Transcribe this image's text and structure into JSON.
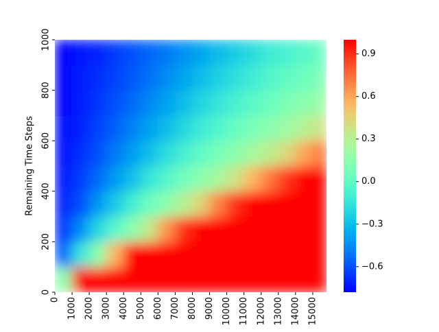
{
  "chart_data": {
    "type": "heatmap",
    "ylabel": "Remaining Time Steps",
    "colormap": "rainbow",
    "xbins": [
      0,
      1000,
      2000,
      3000,
      4000,
      5000,
      6000,
      7000,
      8000,
      9000,
      10000,
      11000,
      12000,
      13000,
      14000,
      15000,
      15800
    ],
    "ybins": [
      0,
      100,
      200,
      300,
      400,
      500,
      600,
      700,
      800,
      900,
      1000
    ],
    "values": [
      [
        0.15,
        1,
        1,
        1,
        1,
        1,
        1,
        1,
        1,
        1,
        1,
        1,
        1,
        1,
        1,
        1
      ],
      [
        -0.55,
        -0.15,
        0.15,
        0.55,
        1,
        1,
        1,
        1,
        1,
        1,
        1,
        1,
        1,
        1,
        1,
        1
      ],
      [
        -0.67,
        -0.45,
        -0.22,
        -0.02,
        0.15,
        0.35,
        0.65,
        0.9,
        1,
        1,
        1,
        1,
        1,
        1,
        1,
        1
      ],
      [
        -0.7,
        -0.6,
        -0.42,
        -0.27,
        -0.1,
        0.05,
        0.15,
        0.3,
        0.45,
        0.7,
        0.9,
        1,
        1,
        1,
        1,
        1
      ],
      [
        -0.73,
        -0.64,
        -0.54,
        -0.41,
        -0.3,
        -0.15,
        -0.04,
        0.07,
        0.15,
        0.25,
        0.38,
        0.55,
        0.72,
        0.88,
        1,
        1
      ],
      [
        -0.75,
        -0.68,
        -0.6,
        -0.5,
        -0.4,
        -0.3,
        -0.19,
        -0.09,
        0.0,
        0.08,
        0.15,
        0.24,
        0.33,
        0.43,
        0.6,
        0.72
      ],
      [
        -0.76,
        -0.7,
        -0.63,
        -0.56,
        -0.48,
        -0.39,
        -0.31,
        -0.21,
        -0.12,
        -0.05,
        0.02,
        0.09,
        0.15,
        0.21,
        0.3,
        0.38
      ],
      [
        -0.77,
        -0.71,
        -0.66,
        -0.6,
        -0.54,
        -0.46,
        -0.39,
        -0.31,
        -0.22,
        -0.15,
        -0.08,
        -0.02,
        0.04,
        0.1,
        0.15,
        0.2
      ],
      [
        -0.77,
        -0.72,
        -0.68,
        -0.63,
        -0.58,
        -0.52,
        -0.45,
        -0.38,
        -0.31,
        -0.24,
        -0.17,
        -0.11,
        -0.05,
        0.0,
        0.05,
        0.1
      ],
      [
        -0.77,
        -0.73,
        -0.7,
        -0.65,
        -0.6,
        -0.55,
        -0.5,
        -0.44,
        -0.38,
        -0.31,
        -0.25,
        -0.19,
        -0.12,
        -0.08,
        -0.03,
        0.02
      ]
    ],
    "xlim": [
      0,
      15800
    ],
    "xticks": [
      0,
      1000,
      2000,
      3000,
      4000,
      5000,
      6000,
      7000,
      8000,
      9000,
      10000,
      11000,
      12000,
      13000,
      14000,
      15000
    ],
    "ylim": [
      0,
      1000
    ],
    "yticks": [
      0,
      200,
      400,
      600,
      800,
      1000
    ],
    "zlim": [
      -0.78,
      1.0
    ],
    "zticks": [
      {
        "value": -0.6,
        "label": "−0.6"
      },
      {
        "value": -0.3,
        "label": "−0.3"
      },
      {
        "value": 0,
        "label": "0.0"
      },
      0.3,
      0.6,
      0.9
    ]
  }
}
